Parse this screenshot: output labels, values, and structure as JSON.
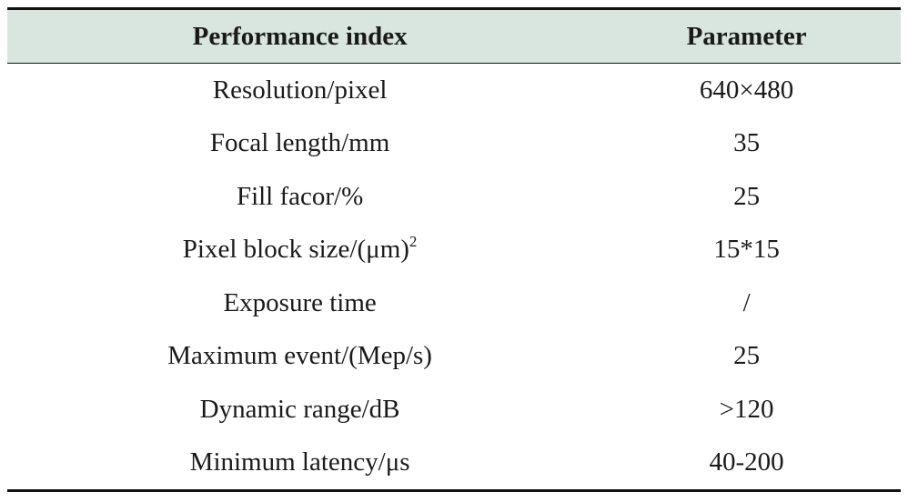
{
  "table": {
    "headers": [
      "Performance index",
      "Parameter"
    ],
    "rows": [
      {
        "index": "Resolution/pixel",
        "sup": "",
        "value": "640×480"
      },
      {
        "index": "Focal length/mm",
        "sup": "",
        "value": "35"
      },
      {
        "index": "Fill facor/%",
        "sup": "",
        "value": "25"
      },
      {
        "index": "Pixel block size/(μm)",
        "sup": "2",
        "value": "15*15"
      },
      {
        "index": "Exposure time",
        "sup": "",
        "value": "/"
      },
      {
        "index": "Maximum event/(Mep/s)",
        "sup": "",
        "value": "25"
      },
      {
        "index": "Dynamic range/dB",
        "sup": "",
        "value": ">120"
      },
      {
        "index": "Minimum latency/μs",
        "sup": "",
        "value": "40-200"
      }
    ]
  },
  "colors": {
    "header_background": "#d9e6e0",
    "rule": "#111111"
  }
}
